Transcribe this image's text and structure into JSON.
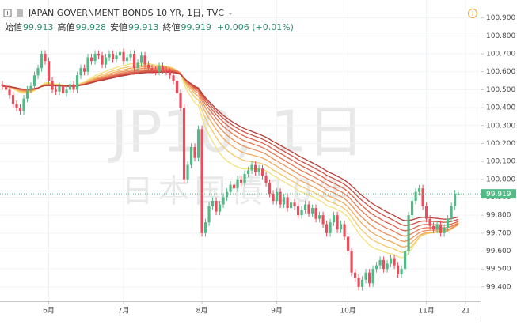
{
  "header": {
    "title": "JAPAN GOVERNMENT BONDS 10 YR, 1日, TVC",
    "ohlc": [
      {
        "label": "始値",
        "value": 99.913
      },
      {
        "label": "高値",
        "value": 99.928
      },
      {
        "label": "安値",
        "value": 99.913
      },
      {
        "label": "終値",
        "value": 99.919
      }
    ],
    "change": "+0.006 (+0.01%)"
  },
  "watermark": {
    "symbol": "JP10, 1日",
    "name": "日本国債10年"
  },
  "chart_data": {
    "type": "candlestick",
    "open": [
      100.53,
      100.52,
      100.5,
      100.47,
      100.42,
      100.4,
      100.38,
      100.45,
      100.5,
      100.52,
      100.58,
      100.62,
      100.7,
      100.66,
      100.55,
      100.5,
      100.49,
      100.52,
      100.48,
      100.5,
      100.53,
      100.5,
      100.58,
      100.62,
      100.6,
      100.68,
      100.66,
      100.7,
      100.69,
      100.64,
      100.68,
      100.7,
      100.67,
      100.69,
      100.71,
      100.66,
      100.68,
      100.7,
      100.62,
      100.65,
      100.69,
      100.64,
      100.62,
      100.61,
      100.6,
      100.63,
      100.61,
      100.6,
      100.58,
      100.55,
      100.48,
      100.4,
      100.0,
      100.08,
      100.18,
      100.12,
      100.28,
      99.7,
      99.76,
      99.85,
      99.88,
      99.82,
      99.86,
      99.9,
      99.93,
      99.97,
      99.95,
      100.0,
      99.98,
      100.03,
      100.05,
      100.08,
      100.04,
      100.06,
      100.02,
      99.98,
      99.92,
      99.88,
      99.93,
      99.86,
      99.9,
      99.84,
      99.87,
      99.85,
      99.8,
      99.83,
      99.86,
      99.81,
      99.84,
      99.78,
      99.8,
      99.75,
      99.7,
      99.76,
      99.8,
      99.72,
      99.75,
      99.68,
      99.6,
      99.48,
      99.45,
      99.4,
      99.44,
      99.48,
      99.42,
      99.5,
      99.52,
      99.55,
      99.5,
      99.53,
      99.56,
      99.52,
      99.47,
      99.5,
      99.6,
      99.8,
      99.88,
      99.93,
      99.95,
      99.85,
      99.78,
      99.74,
      99.72,
      99.75,
      99.7,
      99.73,
      99.78,
      99.85,
      99.913
    ],
    "high": [
      100.55,
      100.54,
      100.52,
      100.49,
      100.44,
      100.42,
      100.47,
      100.52,
      100.54,
      100.6,
      100.64,
      100.72,
      100.72,
      100.68,
      100.57,
      100.52,
      100.54,
      100.54,
      100.52,
      100.55,
      100.55,
      100.6,
      100.64,
      100.64,
      100.7,
      100.7,
      100.72,
      100.72,
      100.71,
      100.7,
      100.72,
      100.72,
      100.71,
      100.73,
      100.73,
      100.7,
      100.72,
      100.72,
      100.67,
      100.71,
      100.71,
      100.66,
      100.64,
      100.63,
      100.65,
      100.65,
      100.63,
      100.62,
      100.6,
      100.57,
      100.5,
      100.42,
      100.1,
      100.2,
      100.2,
      100.3,
      100.3,
      99.78,
      99.87,
      99.9,
      99.9,
      99.88,
      99.92,
      99.95,
      99.99,
      99.99,
      100.02,
      100.02,
      100.05,
      100.07,
      100.1,
      100.1,
      100.08,
      100.08,
      100.04,
      100.0,
      99.94,
      99.95,
      99.95,
      99.92,
      99.92,
      99.89,
      99.89,
      99.87,
      99.85,
      99.88,
      99.88,
      99.86,
      99.86,
      99.82,
      99.82,
      99.77,
      99.78,
      99.82,
      99.82,
      99.77,
      99.77,
      99.7,
      99.62,
      99.5,
      99.47,
      99.46,
      99.5,
      99.5,
      99.52,
      99.54,
      99.57,
      99.57,
      99.55,
      99.58,
      99.58,
      99.54,
      99.52,
      99.62,
      99.82,
      99.9,
      99.95,
      99.97,
      99.97,
      99.87,
      99.8,
      99.76,
      99.77,
      99.77,
      99.75,
      99.8,
      99.87,
      99.94,
      99.928
    ],
    "low": [
      100.5,
      100.48,
      100.45,
      100.4,
      100.38,
      100.36,
      100.36,
      100.43,
      100.48,
      100.5,
      100.56,
      100.6,
      100.64,
      100.53,
      100.48,
      100.47,
      100.47,
      100.46,
      100.46,
      100.48,
      100.48,
      100.48,
      100.56,
      100.58,
      100.58,
      100.64,
      100.64,
      100.67,
      100.62,
      100.62,
      100.66,
      100.65,
      100.65,
      100.67,
      100.64,
      100.64,
      100.66,
      100.6,
      100.6,
      100.63,
      100.62,
      100.6,
      100.59,
      100.58,
      100.58,
      100.59,
      100.58,
      100.56,
      100.53,
      100.46,
      100.38,
      99.98,
      99.98,
      100.06,
      100.1,
      100.1,
      99.68,
      99.68,
      99.74,
      99.83,
      99.8,
      99.8,
      99.84,
      99.88,
      99.91,
      99.93,
      99.93,
      99.96,
      99.96,
      100.01,
      100.03,
      100.02,
      100.02,
      100.0,
      99.96,
      99.9,
      99.86,
      99.86,
      99.84,
      99.84,
      99.82,
      99.82,
      99.83,
      99.78,
      99.78,
      99.81,
      99.79,
      99.79,
      99.76,
      99.76,
      99.73,
      99.68,
      99.68,
      99.74,
      99.7,
      99.7,
      99.66,
      99.58,
      99.46,
      99.43,
      99.38,
      99.38,
      99.42,
      99.4,
      99.4,
      99.48,
      99.5,
      99.48,
      99.48,
      99.51,
      99.5,
      99.45,
      99.45,
      99.48,
      99.58,
      99.78,
      99.86,
      99.91,
      99.83,
      99.76,
      99.72,
      99.7,
      99.7,
      99.68,
      99.68,
      99.71,
      99.76,
      99.83,
      99.913
    ],
    "close": [
      100.52,
      100.5,
      100.47,
      100.42,
      100.4,
      100.38,
      100.45,
      100.5,
      100.52,
      100.58,
      100.62,
      100.7,
      100.66,
      100.55,
      100.5,
      100.49,
      100.52,
      100.48,
      100.5,
      100.53,
      100.5,
      100.58,
      100.62,
      100.6,
      100.68,
      100.66,
      100.7,
      100.69,
      100.64,
      100.68,
      100.7,
      100.67,
      100.69,
      100.71,
      100.66,
      100.68,
      100.7,
      100.62,
      100.65,
      100.69,
      100.64,
      100.62,
      100.61,
      100.6,
      100.63,
      100.61,
      100.6,
      100.58,
      100.55,
      100.48,
      100.4,
      100.0,
      100.08,
      100.18,
      100.12,
      100.28,
      99.7,
      99.76,
      99.85,
      99.88,
      99.82,
      99.86,
      99.9,
      99.93,
      99.97,
      99.95,
      100.0,
      99.98,
      100.03,
      100.05,
      100.08,
      100.04,
      100.06,
      100.02,
      99.98,
      99.92,
      99.88,
      99.93,
      99.86,
      99.9,
      99.84,
      99.87,
      99.85,
      99.8,
      99.83,
      99.86,
      99.81,
      99.84,
      99.78,
      99.8,
      99.75,
      99.7,
      99.76,
      99.8,
      99.72,
      99.75,
      99.68,
      99.6,
      99.48,
      99.45,
      99.4,
      99.44,
      99.48,
      99.42,
      99.5,
      99.52,
      99.55,
      99.5,
      99.53,
      99.56,
      99.52,
      99.47,
      99.5,
      99.6,
      99.8,
      99.88,
      99.93,
      99.95,
      99.85,
      99.78,
      99.74,
      99.72,
      99.75,
      99.7,
      99.73,
      99.78,
      99.85,
      99.92,
      99.919
    ],
    "up_color": "#53b987",
    "down_color": "#eb4d5c",
    "ribbon_colors": [
      "#f3e27a",
      "#f4c76a",
      "#f2aa5e",
      "#ee9058",
      "#e77852",
      "#dd624a",
      "#cf4f43",
      "#b93d39"
    ],
    "xticks": [
      {
        "value": 13,
        "label": "6月"
      },
      {
        "value": 34,
        "label": "7月"
      },
      {
        "value": 56,
        "label": "8月"
      },
      {
        "value": 77,
        "label": "9月"
      },
      {
        "value": 97,
        "label": "10月"
      },
      {
        "value": 119,
        "label": "11月"
      },
      {
        "value": 130,
        "label": "21"
      }
    ],
    "xlim": [
      -0.67,
      134.2
    ],
    "ylim": [
      99.32,
      101.0
    ],
    "yticks": [
      {
        "value": 99.4,
        "label": "99.400"
      },
      {
        "value": 99.5,
        "label": "99.500"
      },
      {
        "value": 99.6,
        "label": "99.600"
      },
      {
        "value": 99.7,
        "label": "99.700"
      },
      {
        "value": 99.8,
        "label": "99.800"
      },
      {
        "value": 99.9,
        "label": "99.900"
      },
      {
        "value": 100.0,
        "label": "100.000"
      },
      {
        "value": 100.1,
        "label": "100.100"
      },
      {
        "value": 100.2,
        "label": "100.200"
      },
      {
        "value": 100.3,
        "label": "100.300"
      },
      {
        "value": 100.4,
        "label": "100.400"
      },
      {
        "value": 100.5,
        "label": "100.500"
      },
      {
        "value": 100.6,
        "label": "100.600"
      },
      {
        "value": 100.7,
        "label": "100.700"
      },
      {
        "value": 100.8,
        "label": "100.800"
      },
      {
        "value": 100.9,
        "label": "100.900"
      }
    ]
  }
}
